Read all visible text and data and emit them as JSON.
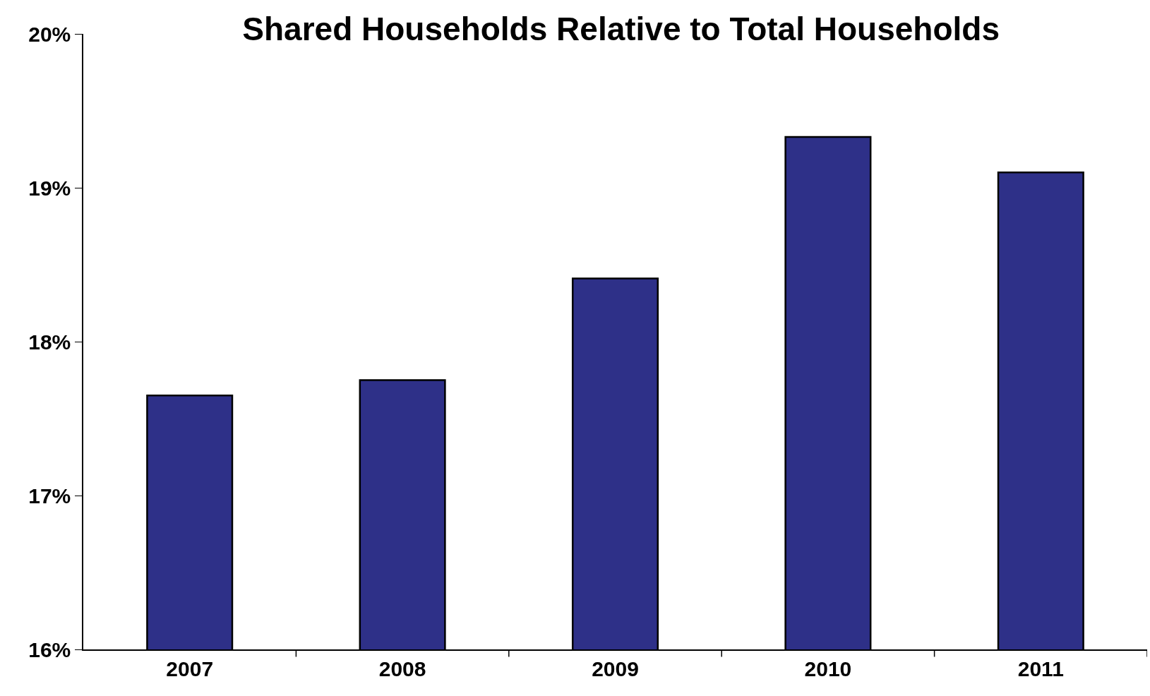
{
  "chart_data": {
    "type": "bar",
    "title": "Shared Households Relative to Total Households",
    "categories": [
      "2007",
      "2008",
      "2009",
      "2010",
      "2011"
    ],
    "values": [
      17.65,
      17.75,
      18.41,
      19.33,
      19.1
    ],
    "color": "#2e3088",
    "ylim": [
      16,
      20
    ],
    "yticks": [
      {
        "value": 16,
        "label": "16%"
      },
      {
        "value": 17,
        "label": "17%"
      },
      {
        "value": 18,
        "label": "18%"
      },
      {
        "value": 19,
        "label": "19%"
      },
      {
        "value": 20,
        "label": "20%"
      }
    ],
    "grid": false
  }
}
